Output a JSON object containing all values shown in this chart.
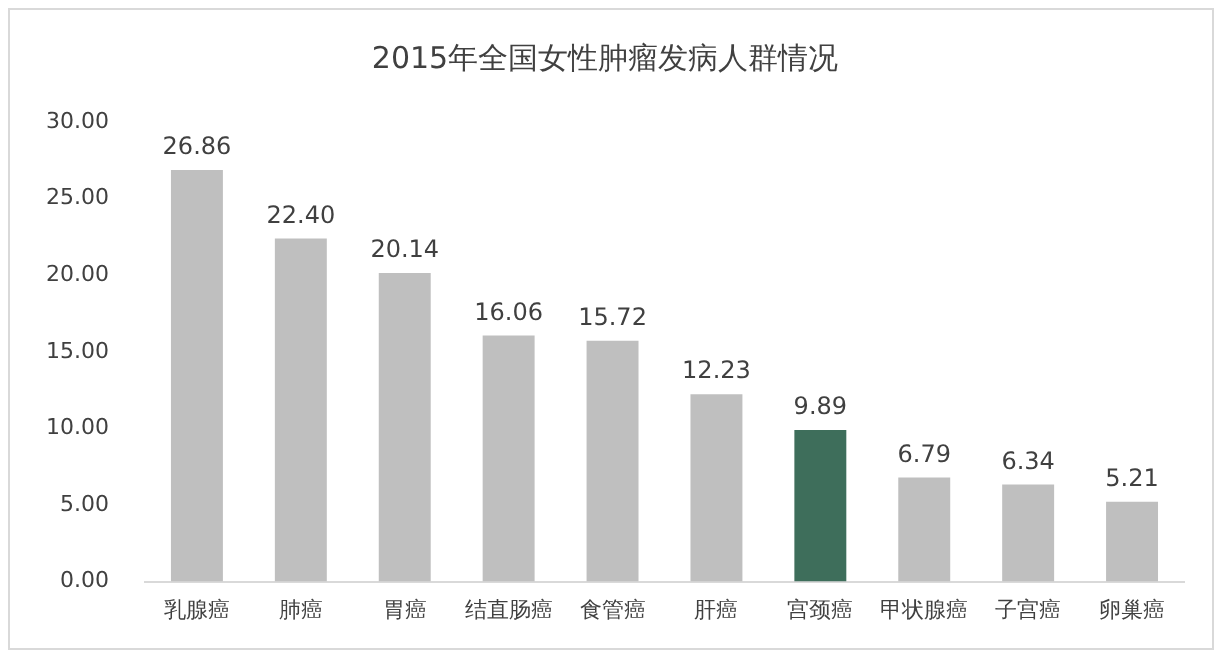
{
  "chart_data": {
    "type": "bar",
    "title": "2015年全国女性肿瘤发病人群情况",
    "categories": [
      "乳腺癌",
      "肺癌",
      "胃癌",
      "结直肠癌",
      "食管癌",
      "肝癌",
      "宫颈癌",
      "甲状腺癌",
      "子宫癌",
      "卵巢癌"
    ],
    "values": [
      26.86,
      22.4,
      20.14,
      16.06,
      15.72,
      12.23,
      9.89,
      6.79,
      6.34,
      5.21
    ],
    "value_labels": [
      "26.86",
      "22.40",
      "20.14",
      "16.06",
      "15.72",
      "12.23",
      "9.89",
      "6.79",
      "6.34",
      "5.21"
    ],
    "colors": [
      "#bfbfbf",
      "#bfbfbf",
      "#bfbfbf",
      "#bfbfbf",
      "#bfbfbf",
      "#bfbfbf",
      "#3e6e5b",
      "#bfbfbf",
      "#bfbfbf",
      "#bfbfbf"
    ],
    "ylim": [
      0,
      30
    ],
    "yticks": [
      {
        "value": 0,
        "label": "0.00"
      },
      {
        "value": 5,
        "label": "5.00"
      },
      {
        "value": 10,
        "label": "10.00"
      },
      {
        "value": 15,
        "label": "15.00"
      },
      {
        "value": 20,
        "label": "20.00"
      },
      {
        "value": 25,
        "label": "25.00"
      },
      {
        "value": 30,
        "label": "30.00"
      }
    ],
    "grid": false,
    "legend": false
  }
}
